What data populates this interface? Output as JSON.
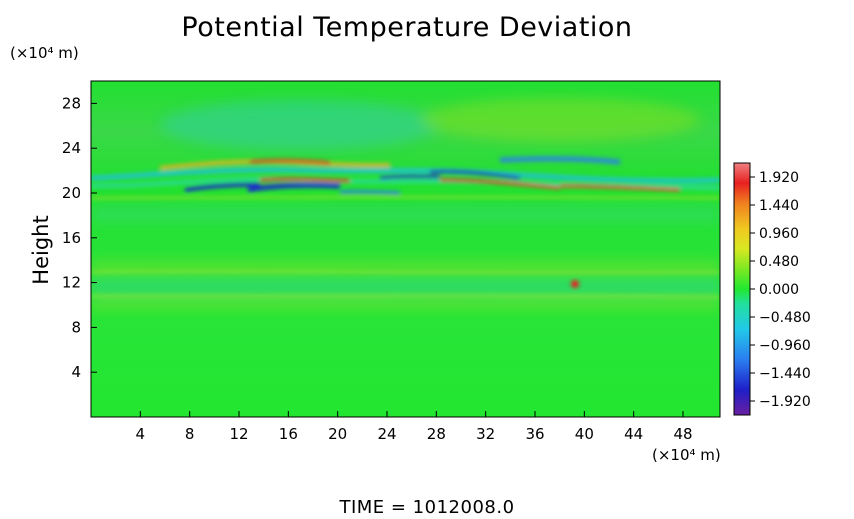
{
  "chart_data": {
    "type": "heatmap",
    "title": "Potential Temperature Deviation",
    "ylabel": "Height",
    "yunit": "(×10⁴ m)",
    "xunit": "(×10⁴ m)",
    "xlim": [
      0,
      51
    ],
    "ylim": [
      0,
      30
    ],
    "xticks": [
      "4",
      "8",
      "12",
      "16",
      "20",
      "24",
      "28",
      "32",
      "36",
      "40",
      "44",
      "48"
    ],
    "yticks": [
      "4",
      "8",
      "12",
      "16",
      "20",
      "24",
      "28"
    ],
    "colorbar": {
      "ticks": [
        "1.920",
        "1.440",
        "0.960",
        "0.480",
        "0.000",
        "−0.480",
        "−0.960",
        "−1.440",
        "−1.920"
      ],
      "range": [
        -2.16,
        2.16
      ]
    },
    "time_label": "TIME  =  1012008.0"
  }
}
